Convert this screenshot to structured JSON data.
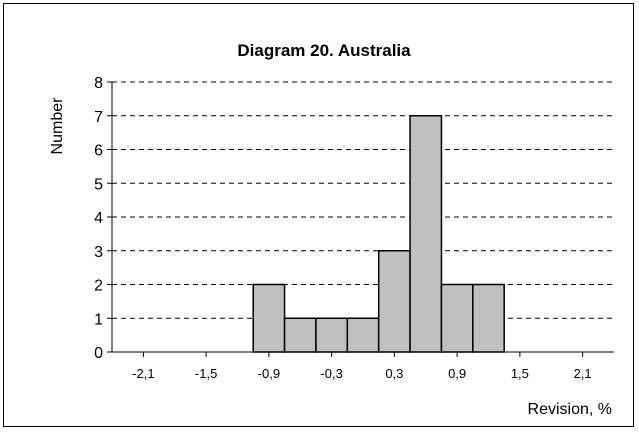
{
  "chart_data": {
    "type": "bar",
    "title": "Diagram 20.  Australia",
    "xlabel": "Revision, %",
    "ylabel": "Number",
    "x_ticks": [
      "-2,1",
      "-1,5",
      "-0,9",
      "-0,3",
      "0,3",
      "0,9",
      "1,5",
      "2,1"
    ],
    "x_tick_values": [
      -2.1,
      -1.5,
      -0.9,
      -0.3,
      0.3,
      0.9,
      1.5,
      2.1
    ],
    "xlim": [
      -2.4,
      2.4
    ],
    "bin_width": 0.3,
    "bins": [
      {
        "start": -1.05,
        "end": -0.75,
        "value": 2
      },
      {
        "start": -0.75,
        "end": -0.45,
        "value": 1
      },
      {
        "start": -0.45,
        "end": -0.15,
        "value": 1
      },
      {
        "start": -0.15,
        "end": 0.15,
        "value": 1
      },
      {
        "start": 0.15,
        "end": 0.45,
        "value": 3
      },
      {
        "start": 0.45,
        "end": 0.75,
        "value": 7
      },
      {
        "start": 0.75,
        "end": 1.05,
        "value": 2
      },
      {
        "start": 1.05,
        "end": 1.35,
        "value": 2
      }
    ],
    "ylim": [
      0,
      8
    ],
    "y_ticks": [
      "0",
      "1",
      "2",
      "3",
      "4",
      "5",
      "6",
      "7",
      "8"
    ],
    "grid": "horizontal dashed",
    "bar_color": "#c0c0c0",
    "edge_color": "#000000"
  }
}
